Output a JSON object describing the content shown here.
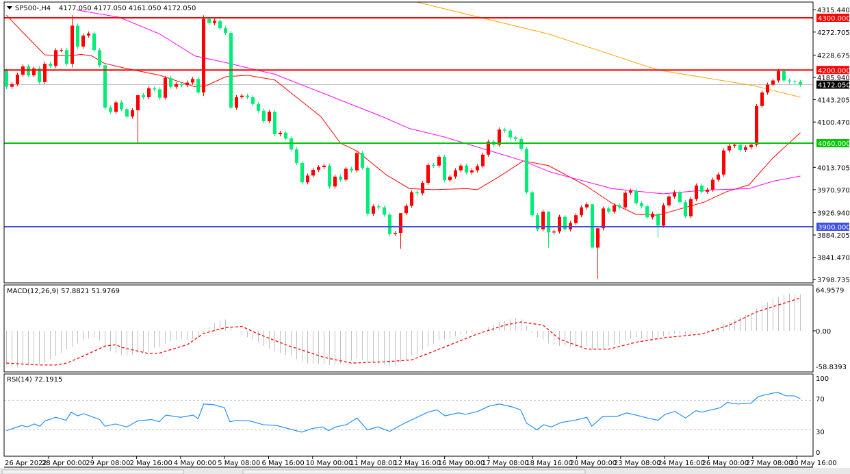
{
  "header": {
    "symbol_label": "SP500-,H4",
    "ohlc": "4177.050 4177.050 4161.050 4172.050"
  },
  "colors": {
    "up_candle": "#ff0000",
    "down_candle": "#00ee76",
    "fast_ma": "#ff0000",
    "mid_ma": "#ff00ff",
    "slow_ma": "#ffa500",
    "macd_hist": "#c0c0c0",
    "macd_signal": "#ff0000",
    "rsi": "#1e90ff"
  },
  "price_axis": {
    "ticks": [
      "4315.440",
      "4272.705",
      "4228.675",
      "4185.940",
      "4143.205",
      "4100.470",
      "4013.705",
      "3970.970",
      "3926.940",
      "3884.205",
      "3841.470",
      "3798.735"
    ]
  },
  "levels": [
    {
      "price": 4300,
      "label": "4300.000",
      "color": "#ff0000"
    },
    {
      "price": 4200,
      "label": "4200.000",
      "color": "#ff0000"
    },
    {
      "price": 4060,
      "label": "4060.000",
      "color": "#00c800"
    },
    {
      "price": 3900,
      "label": "3900.000",
      "color": "#4050e0"
    }
  ],
  "current_price": {
    "price": 4172.05,
    "label": "4172.050"
  },
  "time_axis": [
    "26 Apr 2022",
    "28 Apr 00:00",
    "29 Apr 08:00",
    "2 May 16:00",
    "4 May 00:00",
    "5 May 08:00",
    "6 May 16:00",
    "10 May 00:00",
    "11 May 08:00",
    "12 May 16:00",
    "16 May 00:00",
    "17 May 08:00",
    "18 May 16:00",
    "20 May 00:00",
    "23 May 08:00",
    "24 May 16:00",
    "26 May 00:00",
    "27 May 08:00",
    "30 May 16:00"
  ],
  "macd": {
    "label": "MACD(12,26,9) 57.8821 51.9769",
    "axis": [
      "64.9579",
      "0.00",
      "-58.8393"
    ]
  },
  "rsi": {
    "label": "RSI(14) 72.1915",
    "axis": [
      "100",
      "70",
      "30",
      "0"
    ]
  },
  "chart_data": [
    {
      "type": "candlestick",
      "title": "SP500-,H4",
      "ylim": [
        3798.735,
        4315.44
      ],
      "first_open": 4199,
      "close": [
        4168,
        4173,
        4191,
        4207,
        4190,
        4203,
        4177,
        4212,
        4208,
        4238,
        4238,
        4212,
        4285,
        4245,
        4266,
        4270,
        4238,
        4209,
        4128,
        4120,
        4138,
        4125,
        4111,
        4123,
        4152,
        4148,
        4165,
        4163,
        4147,
        4185,
        4168,
        4173,
        4171,
        4176,
        4183,
        4157,
        4298,
        4290,
        4294,
        4280,
        4271,
        4128,
        4148,
        4151,
        4148,
        4135,
        4122,
        4102,
        4120,
        4077,
        4080,
        4069,
        4048,
        4022,
        3985,
        3998,
        4009,
        4014,
        4017,
        3977,
        3996,
        3990,
        4011,
        4008,
        4041,
        4013,
        3925,
        3939,
        3937,
        3923,
        3886,
        3888,
        3926,
        3940,
        3966,
        3964,
        3984,
        4018,
        4017,
        4034,
        3989,
        3996,
        4008,
        4017,
        4004,
        4008,
        4016,
        4038,
        4063,
        4057,
        4086,
        4084,
        4071,
        4068,
        4049,
        3966,
        3922,
        3895,
        3929,
        3889,
        3891,
        3919,
        3895,
        3907,
        3922,
        3937,
        3943,
        3860,
        3897,
        3935,
        3929,
        3941,
        3937,
        3965,
        3969,
        3945,
        3939,
        3918,
        3925,
        3902,
        3941,
        3958,
        3966,
        3947,
        3920,
        3953,
        3979,
        3967,
        3971,
        3990,
        4000,
        4046,
        4055,
        4057,
        4047,
        4052,
        4057,
        4131,
        4157,
        4172,
        4180,
        4198,
        4180,
        4178,
        4177,
        4172
      ],
      "notable_wicks": {
        "12": [
          4305,
          4205
        ],
        "24": [
          4152,
          4060
        ],
        "36": [
          4305,
          4150
        ],
        "72": [
          3926,
          3858
        ],
        "99": [
          3929,
          3860
        ],
        "107": [
          3943,
          3860
        ],
        "108": [
          3897,
          3800
        ],
        "119": [
          3925,
          3880
        ]
      },
      "moving_averages": [
        {
          "color": "#ff0000",
          "points": [
            [
              0,
              4305
            ],
            [
              3,
              4272
            ],
            [
              7,
              4229
            ],
            [
              11.5,
              4227
            ],
            [
              13.6,
              4230
            ],
            [
              15.6,
              4227
            ],
            [
              17.8,
              4213
            ],
            [
              21.9,
              4203
            ],
            [
              28,
              4190
            ],
            [
              34.4,
              4168
            ],
            [
              36.5,
              4170
            ],
            [
              40,
              4187
            ],
            [
              44,
              4190
            ],
            [
              49,
              4181
            ],
            [
              57.4,
              4111
            ],
            [
              61,
              4060
            ],
            [
              64,
              4045
            ],
            [
              69.4,
              3999
            ],
            [
              73.6,
              3973
            ],
            [
              78,
              3971
            ],
            [
              84,
              3973
            ],
            [
              86,
              3971
            ],
            [
              90,
              3996
            ],
            [
              94.4,
              4026
            ],
            [
              99,
              4017
            ],
            [
              105.6,
              3980
            ],
            [
              110.6,
              3945
            ],
            [
              114.9,
              3924
            ],
            [
              119,
              3922
            ],
            [
              123,
              3934
            ],
            [
              127.4,
              3947
            ],
            [
              131.5,
              3967
            ],
            [
              135.6,
              3980
            ],
            [
              140,
              4032
            ],
            [
              145,
              4080
            ]
          ]
        },
        {
          "color": "#ff00ff",
          "points": [
            [
              12.8,
              4315
            ],
            [
              20.6,
              4301
            ],
            [
              28,
              4269
            ],
            [
              34.4,
              4227
            ],
            [
              40.6,
              4213
            ],
            [
              44.9,
              4202
            ],
            [
              49,
              4192
            ],
            [
              68.6,
              4111
            ],
            [
              73.6,
              4088
            ],
            [
              79.9,
              4072
            ],
            [
              84,
              4059
            ],
            [
              90.3,
              4039
            ],
            [
              94.4,
              4026
            ],
            [
              99,
              4006
            ],
            [
              102.4,
              3996
            ],
            [
              110.6,
              3973
            ],
            [
              119.9,
              3963
            ],
            [
              127.4,
              3970
            ],
            [
              135.6,
              3973
            ],
            [
              140,
              3987
            ],
            [
              145,
              3997
            ]
          ]
        },
        {
          "color": "#ffa500",
          "points": [
            [
              75,
              4330
            ],
            [
              99,
              4269
            ],
            [
              119,
              4200
            ],
            [
              136.5,
              4170
            ],
            [
              145,
              4148
            ]
          ]
        }
      ]
    },
    {
      "type": "bar",
      "title": "MACD(12,26,9)",
      "ylim": [
        -58.8393,
        64.9579
      ],
      "values": [
        -54,
        -57,
        -58,
        -56,
        -55,
        -54,
        -53,
        -50,
        -45,
        -40,
        -35,
        -30,
        -25,
        -20,
        -16,
        -12,
        -11,
        -15,
        -28,
        -32,
        -35,
        -38,
        -40,
        -38,
        -35,
        -34,
        -32,
        -27,
        -25,
        -20,
        -16,
        -14,
        -13,
        -14,
        -13,
        -11,
        -2,
        6,
        12,
        16,
        18,
        8,
        0,
        -6,
        -10,
        -14,
        -18,
        -24,
        -28,
        -32,
        -35,
        -38,
        -41,
        -45,
        -49,
        -51,
        -52,
        -52,
        -52,
        -54,
        -53,
        -52,
        -50,
        -47,
        -44,
        -46,
        -50,
        -51,
        -52,
        -54,
        -56,
        -55,
        -50,
        -46,
        -40,
        -36,
        -30,
        -25,
        -20,
        -15,
        -14,
        -12,
        -9,
        -6,
        -5,
        -3,
        -1,
        2,
        6,
        10,
        14,
        16,
        18,
        20,
        18,
        8,
        -3,
        -10,
        -14,
        -20,
        -22,
        -24,
        -24,
        -26,
        -26,
        -25,
        -24,
        -30,
        -30,
        -27,
        -24,
        -22,
        -20,
        -16,
        -13,
        -12,
        -12,
        -13,
        -12,
        -12,
        -9,
        -7,
        -5,
        -5,
        -6,
        -5,
        -2,
        0,
        1,
        3,
        5,
        10,
        14,
        18,
        22,
        25,
        28,
        35,
        40,
        45,
        50,
        54,
        57,
        59,
        58,
        58
      ],
      "signal": [
        [
          0,
          -51
        ],
        [
          6,
          -54
        ],
        [
          9,
          -54
        ],
        [
          11,
          -51
        ],
        [
          14,
          -40
        ],
        [
          18,
          -24
        ],
        [
          20,
          -22
        ],
        [
          21,
          -26
        ],
        [
          26,
          -36
        ],
        [
          28,
          -35
        ],
        [
          33,
          -22
        ],
        [
          36,
          -4
        ],
        [
          40,
          5
        ],
        [
          43,
          7
        ],
        [
          46,
          -5
        ],
        [
          51,
          -22
        ],
        [
          58,
          -42
        ],
        [
          63,
          -51
        ],
        [
          69,
          -49
        ],
        [
          74,
          -46
        ],
        [
          79,
          -29
        ],
        [
          86,
          -5
        ],
        [
          91,
          9
        ],
        [
          94,
          14
        ],
        [
          98,
          9
        ],
        [
          101,
          -13
        ],
        [
          106,
          -29
        ],
        [
          110,
          -29
        ],
        [
          115,
          -18
        ],
        [
          120,
          -11
        ],
        [
          127,
          -5
        ],
        [
          132,
          9
        ],
        [
          137,
          30
        ],
        [
          145,
          52
        ]
      ]
    },
    {
      "type": "line",
      "title": "RSI(14)",
      "ylim": [
        0,
        100
      ],
      "levels": [
        70,
        30
      ],
      "points": [
        [
          0,
          29
        ],
        [
          2.8,
          36
        ],
        [
          3.8,
          34
        ],
        [
          5.1,
          38
        ],
        [
          6.1,
          35
        ],
        [
          7,
          42
        ],
        [
          9,
          47
        ],
        [
          10.9,
          43
        ],
        [
          11.8,
          54
        ],
        [
          13,
          49
        ],
        [
          14.1,
          52
        ],
        [
          17,
          44
        ],
        [
          18,
          35
        ],
        [
          19.9,
          38
        ],
        [
          22,
          34
        ],
        [
          23.9,
          42
        ],
        [
          26.5,
          44
        ],
        [
          27.9,
          41
        ],
        [
          29.1,
          50
        ],
        [
          31.8,
          47
        ],
        [
          34.1,
          50
        ],
        [
          35,
          45
        ],
        [
          36,
          65
        ],
        [
          37.9,
          64
        ],
        [
          39.8,
          60
        ],
        [
          40.8,
          41
        ],
        [
          42.1,
          43
        ],
        [
          44.5,
          42
        ],
        [
          46.9,
          37
        ],
        [
          49.3,
          36
        ],
        [
          53.9,
          27
        ],
        [
          55.9,
          32
        ],
        [
          57.8,
          34
        ],
        [
          58.8,
          29
        ],
        [
          60.1,
          34
        ],
        [
          62.1,
          37
        ],
        [
          64,
          46
        ],
        [
          65.9,
          30
        ],
        [
          67.8,
          34
        ],
        [
          70,
          28
        ],
        [
          71.9,
          36
        ],
        [
          74.4,
          45
        ],
        [
          77,
          54
        ],
        [
          78.6,
          57
        ],
        [
          80.1,
          49
        ],
        [
          82.5,
          53
        ],
        [
          83.9,
          51
        ],
        [
          86.1,
          55
        ],
        [
          88.1,
          62
        ],
        [
          90,
          65
        ],
        [
          92.4,
          61
        ],
        [
          93.9,
          57
        ],
        [
          95,
          39
        ],
        [
          96.9,
          30
        ],
        [
          98.1,
          37
        ],
        [
          99.5,
          34
        ],
        [
          101.3,
          40
        ],
        [
          103.8,
          43
        ],
        [
          106,
          47
        ],
        [
          106.9,
          35
        ],
        [
          108.9,
          48
        ],
        [
          111.4,
          48
        ],
        [
          113.3,
          53
        ],
        [
          115.5,
          49
        ],
        [
          117.1,
          46
        ],
        [
          119,
          43
        ],
        [
          120.3,
          51
        ],
        [
          122.1,
          55
        ],
        [
          124,
          46
        ],
        [
          125.9,
          56
        ],
        [
          127,
          54
        ],
        [
          130.4,
          60
        ],
        [
          131.6,
          67
        ],
        [
          133.6,
          65
        ],
        [
          136,
          66
        ],
        [
          137.3,
          75
        ],
        [
          138.4,
          77
        ],
        [
          140.8,
          81
        ],
        [
          142.4,
          76
        ],
        [
          143.9,
          76
        ],
        [
          145,
          72.19
        ]
      ]
    }
  ]
}
